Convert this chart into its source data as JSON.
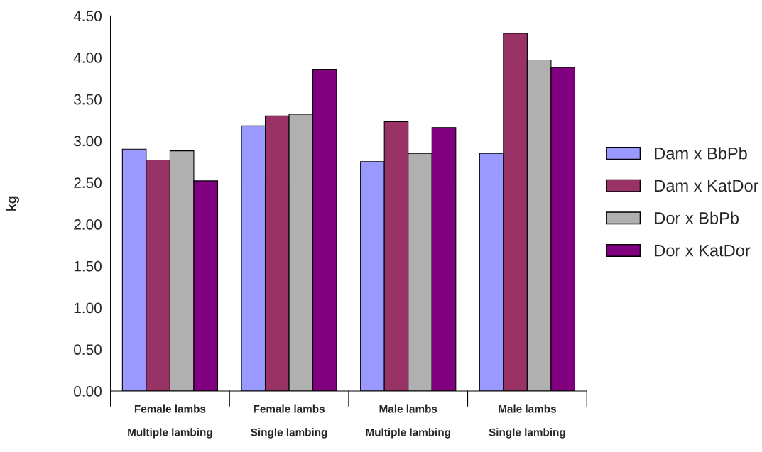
{
  "chart_data": {
    "type": "bar",
    "ylabel": "kg",
    "categories": [
      "Female lambs\n\nMultiple lambing",
      "Female lambs\n\nSingle lambing",
      "Male lambs\n\nMultiple lambing",
      "Male lambs\n\nSingle lambing"
    ],
    "series": [
      {
        "name": "Dam x BbPb",
        "color": "#9999ff",
        "values": [
          2.9,
          3.18,
          2.75,
          2.85
        ]
      },
      {
        "name": "Dam x KatDor",
        "color": "#993366",
        "values": [
          2.77,
          3.3,
          3.23,
          4.29
        ]
      },
      {
        "name": "Dor x BbPb",
        "color": "#b0b0b0",
        "values": [
          2.88,
          3.32,
          2.85,
          3.97
        ]
      },
      {
        "name": "Dor x KatDor",
        "color": "#800080",
        "values": [
          2.52,
          3.86,
          3.16,
          3.88
        ]
      }
    ],
    "ylim": [
      0,
      4.5
    ],
    "yticks": [
      {
        "value": 0,
        "label": "0.00"
      },
      {
        "value": 0.5,
        "label": "0.50"
      },
      {
        "value": 1,
        "label": "1.00"
      },
      {
        "value": 1.5,
        "label": "1.50"
      },
      {
        "value": 2,
        "label": "2.00"
      },
      {
        "value": 2.5,
        "label": "2.50"
      },
      {
        "value": 3,
        "label": "3.00"
      },
      {
        "value": 3.5,
        "label": "3.50"
      },
      {
        "value": 4,
        "label": "4.00"
      },
      {
        "value": 4.5,
        "label": "4.50"
      }
    ],
    "grid": false,
    "legend": "right"
  }
}
